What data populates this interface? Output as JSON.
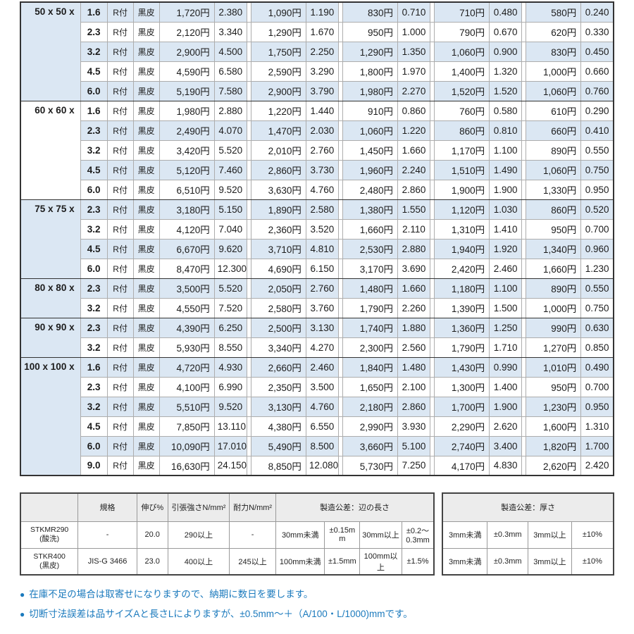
{
  "price_table": {
    "r_label": "R付",
    "surface_label": "黒皮",
    "groups": [
      {
        "size": "50 x 50 x",
        "rows": [
          {
            "thickness": "1.6",
            "pairs": [
              [
                "1,720円",
                "2.380"
              ],
              [
                "1,090円",
                "1.190"
              ],
              [
                "830円",
                "0.710"
              ],
              [
                "710円",
                "0.480"
              ],
              [
                "580円",
                "0.240"
              ]
            ]
          },
          {
            "thickness": "2.3",
            "pairs": [
              [
                "2,120円",
                "3.340"
              ],
              [
                "1,290円",
                "1.670"
              ],
              [
                "950円",
                "1.000"
              ],
              [
                "790円",
                "0.670"
              ],
              [
                "620円",
                "0.330"
              ]
            ]
          },
          {
            "thickness": "3.2",
            "pairs": [
              [
                "2,900円",
                "4.500"
              ],
              [
                "1,750円",
                "2.250"
              ],
              [
                "1,290円",
                "1.350"
              ],
              [
                "1,060円",
                "0.900"
              ],
              [
                "830円",
                "0.450"
              ]
            ]
          },
          {
            "thickness": "4.5",
            "pairs": [
              [
                "4,590円",
                "6.580"
              ],
              [
                "2,590円",
                "3.290"
              ],
              [
                "1,800円",
                "1.970"
              ],
              [
                "1,400円",
                "1.320"
              ],
              [
                "1,000円",
                "0.660"
              ]
            ]
          },
          {
            "thickness": "6.0",
            "pairs": [
              [
                "5,190円",
                "7.580"
              ],
              [
                "2,900円",
                "3.790"
              ],
              [
                "1,980円",
                "2.270"
              ],
              [
                "1,520円",
                "1.520"
              ],
              [
                "1,060円",
                "0.760"
              ]
            ]
          }
        ]
      },
      {
        "size": "60 x 60 x",
        "rows": [
          {
            "thickness": "1.6",
            "pairs": [
              [
                "1,980円",
                "2.880"
              ],
              [
                "1,220円",
                "1.440"
              ],
              [
                "910円",
                "0.860"
              ],
              [
                "760円",
                "0.580"
              ],
              [
                "610円",
                "0.290"
              ]
            ]
          },
          {
            "thickness": "2.3",
            "pairs": [
              [
                "2,490円",
                "4.070"
              ],
              [
                "1,470円",
                "2.030"
              ],
              [
                "1,060円",
                "1.220"
              ],
              [
                "860円",
                "0.810"
              ],
              [
                "660円",
                "0.410"
              ]
            ]
          },
          {
            "thickness": "3.2",
            "pairs": [
              [
                "3,420円",
                "5.520"
              ],
              [
                "2,010円",
                "2.760"
              ],
              [
                "1,450円",
                "1.660"
              ],
              [
                "1,170円",
                "1.100"
              ],
              [
                "890円",
                "0.550"
              ]
            ]
          },
          {
            "thickness": "4.5",
            "pairs": [
              [
                "5,120円",
                "7.460"
              ],
              [
                "2,860円",
                "3.730"
              ],
              [
                "1,960円",
                "2.240"
              ],
              [
                "1,510円",
                "1.490"
              ],
              [
                "1,060円",
                "0.750"
              ]
            ]
          },
          {
            "thickness": "6.0",
            "pairs": [
              [
                "6,510円",
                "9.520"
              ],
              [
                "3,630円",
                "4.760"
              ],
              [
                "2,480円",
                "2.860"
              ],
              [
                "1,900円",
                "1.900"
              ],
              [
                "1,330円",
                "0.950"
              ]
            ]
          }
        ]
      },
      {
        "size": "75 x 75 x",
        "rows": [
          {
            "thickness": "2.3",
            "pairs": [
              [
                "3,180円",
                "5.150"
              ],
              [
                "1,890円",
                "2.580"
              ],
              [
                "1,380円",
                "1.550"
              ],
              [
                "1,120円",
                "1.030"
              ],
              [
                "860円",
                "0.520"
              ]
            ]
          },
          {
            "thickness": "3.2",
            "pairs": [
              [
                "4,120円",
                "7.040"
              ],
              [
                "2,360円",
                "3.520"
              ],
              [
                "1,660円",
                "2.110"
              ],
              [
                "1,310円",
                "1.410"
              ],
              [
                "950円",
                "0.700"
              ]
            ]
          },
          {
            "thickness": "4.5",
            "pairs": [
              [
                "6,670円",
                "9.620"
              ],
              [
                "3,710円",
                "4.810"
              ],
              [
                "2,530円",
                "2.880"
              ],
              [
                "1,940円",
                "1.920"
              ],
              [
                "1,340円",
                "0.960"
              ]
            ]
          },
          {
            "thickness": "6.0",
            "pairs": [
              [
                "8,470円",
                "12.300"
              ],
              [
                "4,690円",
                "6.150"
              ],
              [
                "3,170円",
                "3.690"
              ],
              [
                "2,420円",
                "2.460"
              ],
              [
                "1,660円",
                "1.230"
              ]
            ]
          }
        ]
      },
      {
        "size": "80 x 80 x",
        "rows": [
          {
            "thickness": "2.3",
            "pairs": [
              [
                "3,500円",
                "5.520"
              ],
              [
                "2,050円",
                "2.760"
              ],
              [
                "1,480円",
                "1.660"
              ],
              [
                "1,180円",
                "1.100"
              ],
              [
                "890円",
                "0.550"
              ]
            ]
          },
          {
            "thickness": "3.2",
            "pairs": [
              [
                "4,550円",
                "7.520"
              ],
              [
                "2,580円",
                "3.760"
              ],
              [
                "1,790円",
                "2.260"
              ],
              [
                "1,390円",
                "1.500"
              ],
              [
                "1,000円",
                "0.750"
              ]
            ]
          }
        ]
      },
      {
        "size": "90 x 90 x",
        "rows": [
          {
            "thickness": "2.3",
            "pairs": [
              [
                "4,390円",
                "6.250"
              ],
              [
                "2,500円",
                "3.130"
              ],
              [
                "1,740円",
                "1.880"
              ],
              [
                "1,360円",
                "1.250"
              ],
              [
                "990円",
                "0.630"
              ]
            ]
          },
          {
            "thickness": "3.2",
            "pairs": [
              [
                "5,930円",
                "8.550"
              ],
              [
                "3,340円",
                "4.270"
              ],
              [
                "2,300円",
                "2.560"
              ],
              [
                "1,790円",
                "1.710"
              ],
              [
                "1,270円",
                "0.850"
              ]
            ]
          }
        ]
      },
      {
        "size": "100 x 100 x",
        "rows": [
          {
            "thickness": "1.6",
            "pairs": [
              [
                "4,720円",
                "4.930"
              ],
              [
                "2,660円",
                "2.460"
              ],
              [
                "1,840円",
                "1.480"
              ],
              [
                "1,430円",
                "0.990"
              ],
              [
                "1,010円",
                "0.490"
              ]
            ]
          },
          {
            "thickness": "2.3",
            "pairs": [
              [
                "4,100円",
                "6.990"
              ],
              [
                "2,350円",
                "3.500"
              ],
              [
                "1,650円",
                "2.100"
              ],
              [
                "1,300円",
                "1.400"
              ],
              [
                "950円",
                "0.700"
              ]
            ]
          },
          {
            "thickness": "3.2",
            "pairs": [
              [
                "5,510円",
                "9.520"
              ],
              [
                "3,130円",
                "4.760"
              ],
              [
                "2,180円",
                "2.860"
              ],
              [
                "1,700円",
                "1.900"
              ],
              [
                "1,230円",
                "0.950"
              ]
            ]
          },
          {
            "thickness": "4.5",
            "pairs": [
              [
                "7,850円",
                "13.110"
              ],
              [
                "4,380円",
                "6.550"
              ],
              [
                "2,990円",
                "3.930"
              ],
              [
                "2,290円",
                "2.620"
              ],
              [
                "1,600円",
                "1.310"
              ]
            ]
          },
          {
            "thickness": "6.0",
            "pairs": [
              [
                "10,090円",
                "17.010"
              ],
              [
                "5,490円",
                "8.500"
              ],
              [
                "3,660円",
                "5.100"
              ],
              [
                "2,740円",
                "3.400"
              ],
              [
                "1,820円",
                "1.700"
              ]
            ]
          },
          {
            "thickness": "9.0",
            "pairs": [
              [
                "16,630円",
                "24.150"
              ],
              [
                "8,850円",
                "12.080"
              ],
              [
                "5,730円",
                "7.250"
              ],
              [
                "4,170円",
                "4.830"
              ],
              [
                "2,620円",
                "2.420"
              ]
            ]
          }
        ]
      }
    ]
  },
  "spec_table": {
    "headers": {
      "standard": "規格",
      "elongation": "伸び%",
      "tensile": "引張強さN/mm²",
      "yield": "耐力N/mm²",
      "edge_tolerance": "製造公差：辺の長さ",
      "thickness_tolerance": "製造公差：厚さ"
    },
    "rows": [
      {
        "name": "STKMR290",
        "sub": "(酸洗)",
        "standard": "-",
        "elongation": "20.0",
        "tensile": "290以上",
        "yield": "-",
        "edge": [
          "30mm未満",
          "±0.15mm",
          "30mm以上",
          "±0.2〜0.3mm"
        ],
        "thickness": [
          "3mm未満",
          "±0.3mm",
          "3mm以上",
          "±10%"
        ]
      },
      {
        "name": "STKR400",
        "sub": "(黒皮)",
        "standard": "JIS-G 3466",
        "elongation": "23.0",
        "tensile": "400以上",
        "yield": "245以上",
        "edge": [
          "100mm未満",
          "±1.5mm",
          "100mm以上",
          "±1.5%"
        ],
        "thickness": [
          "3mm未満",
          "±0.3mm",
          "3mm以上",
          "±10%"
        ]
      }
    ]
  },
  "notes": {
    "bullet": "●",
    "items": [
      "在庫不足の場合は取寄せになりますので、納期に数日を要します。",
      "切断寸法誤差は品サイズAと長さLによりますが、±0.5mm〜＋（A/100・L/1000)mmです。"
    ]
  },
  "colors": {
    "row_shade": "#dbe7f3",
    "header_gray": "#ececec",
    "note_blue": "#1b7abd",
    "border_dark": "#333333"
  }
}
